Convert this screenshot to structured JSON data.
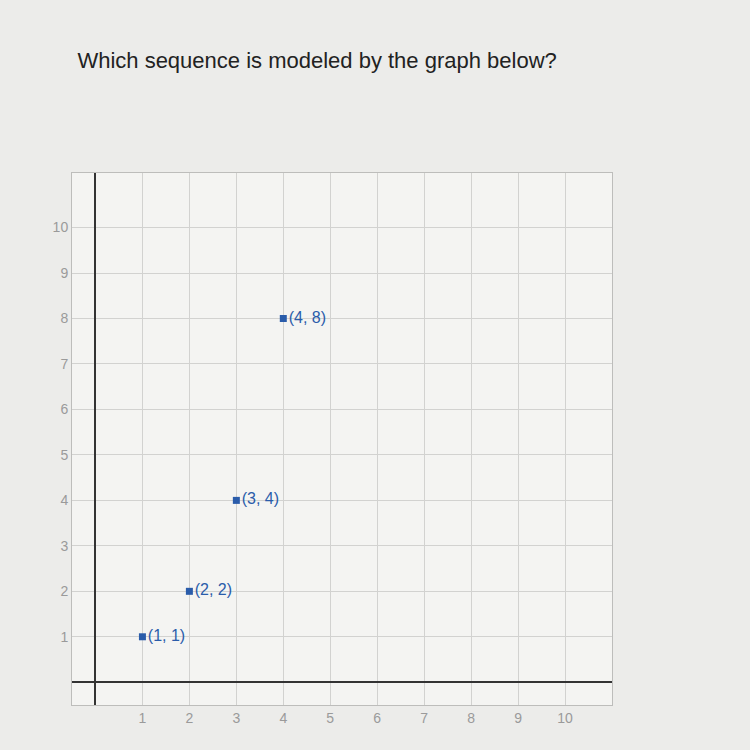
{
  "chart_data": {
    "type": "scatter",
    "title": "Which sequence is modeled by the graph below?",
    "x": [
      1,
      2,
      3,
      4
    ],
    "values": [
      1,
      2,
      4,
      8
    ],
    "value_labels": [
      "(1, 1)",
      "(2, 2)",
      "(3, 4)",
      "(4, 8)"
    ],
    "data_labels": true,
    "color": "#2a5caa",
    "marker": "square",
    "xlim": [
      -0.5,
      11
    ],
    "ylim": [
      -0.5,
      11.2
    ],
    "xticks": [
      1,
      2,
      3,
      4,
      5,
      6,
      7,
      8,
      9,
      10
    ],
    "yticks": [
      1,
      2,
      3,
      4,
      5,
      6,
      7,
      8,
      9,
      10
    ],
    "grid": true
  }
}
